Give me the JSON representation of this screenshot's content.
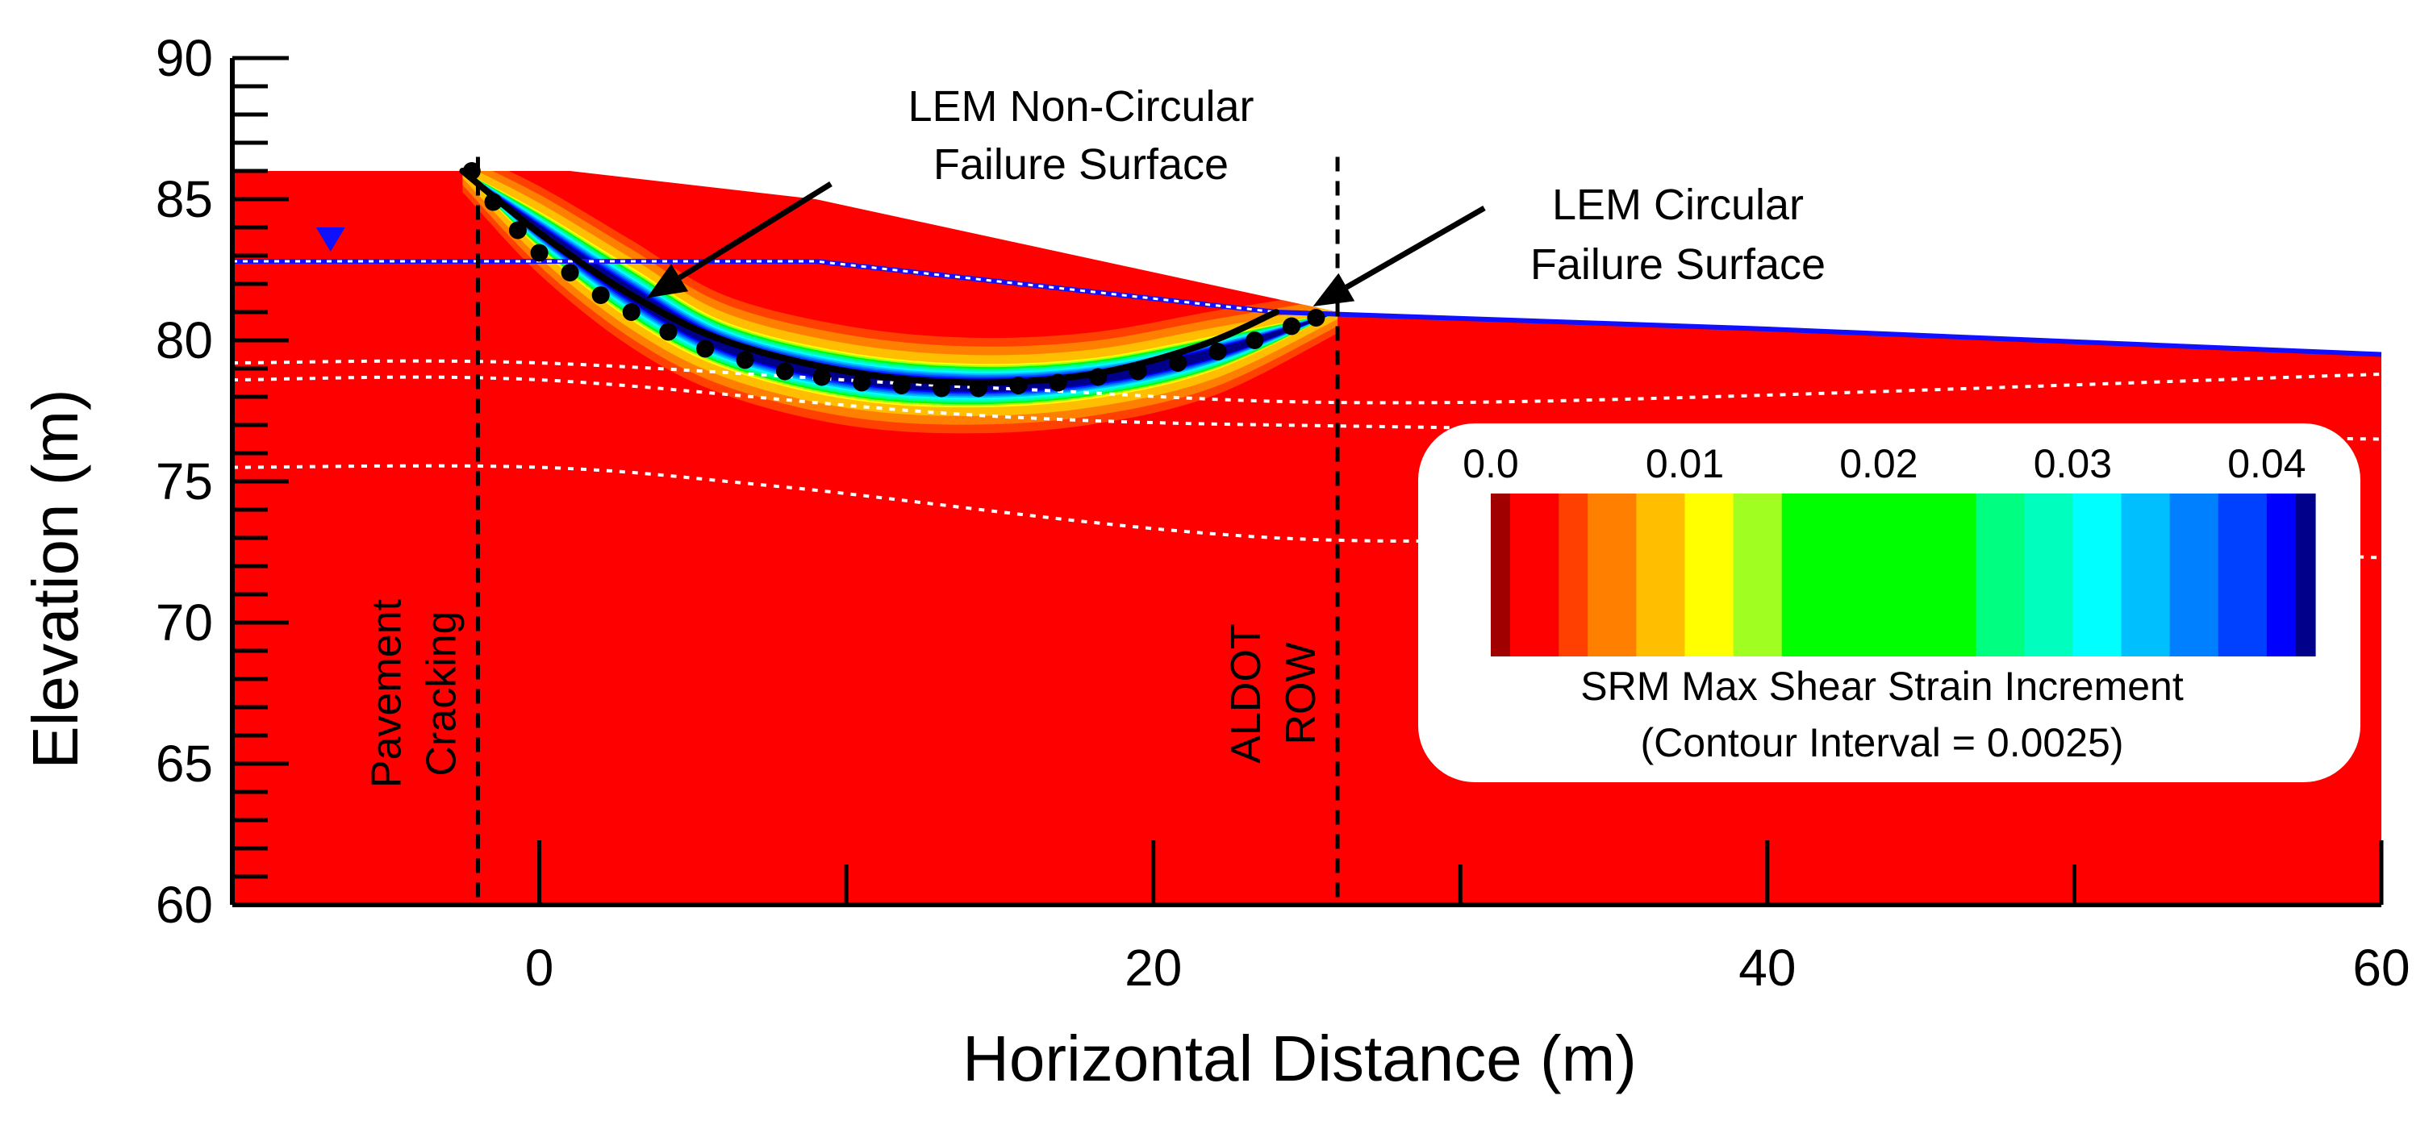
{
  "chart_data": {
    "type": "contour",
    "title": "",
    "xlabel": "Horizontal Distance (m)",
    "ylabel": "Elevation (m)",
    "xlim": [
      -10,
      60
    ],
    "ylim": [
      60,
      90
    ],
    "x_ticks": [
      0,
      20,
      40,
      60
    ],
    "y_ticks": [
      60,
      65,
      70,
      75,
      80,
      85,
      90
    ],
    "colors": {
      "background": "#ff0000",
      "water_table": "#1010ff",
      "layer_boundary": "#ffffff"
    },
    "ground_surface": {
      "x": [
        -10,
        1,
        9,
        26,
        60
      ],
      "y": [
        86,
        86,
        85,
        81,
        79.5
      ]
    },
    "water_table": {
      "x": [
        -10,
        9,
        24,
        40,
        60
      ],
      "y": [
        82.8,
        82.8,
        81,
        80.4,
        79.5
      ]
    },
    "layer_boundaries": [
      {
        "x": [
          -10,
          0,
          15,
          30,
          60
        ],
        "y": [
          79.2,
          79.2,
          78.3,
          77.8,
          78.8
        ]
      },
      {
        "x": [
          -10,
          0,
          15,
          30,
          60
        ],
        "y": [
          78.6,
          78.6,
          77.3,
          76.9,
          76.5
        ]
      },
      {
        "x": [
          -10,
          0,
          8,
          24,
          40,
          60
        ],
        "y": [
          75.5,
          75.5,
          74.8,
          73,
          73,
          72.3
        ]
      }
    ],
    "non_circular_surface": {
      "label_line1": "LEM Non-Circular",
      "label_line2": "Failure Surface",
      "x": [
        -2.5,
        0,
        3,
        6,
        10,
        14,
        18,
        21.5,
        24
      ],
      "y": [
        86,
        83.8,
        81.6,
        80,
        78.9,
        78.5,
        78.8,
        79.8,
        81
      ]
    },
    "circular_surface": {
      "label_line1": "LEM Circular",
      "label_line2": "Failure Surface",
      "x": [
        -2.2,
        -1.5,
        -0.7,
        0,
        1,
        2,
        3,
        4.2,
        5.4,
        6.7,
        8,
        9.2,
        10.5,
        11.8,
        13.1,
        14.3,
        15.6,
        16.9,
        18.2,
        19.5,
        20.8,
        22.1,
        23.3,
        24.5,
        25.3
      ],
      "y": [
        86,
        84.9,
        83.9,
        83.1,
        82.4,
        81.6,
        81,
        80.3,
        79.7,
        79.3,
        78.9,
        78.7,
        78.5,
        78.4,
        78.3,
        78.3,
        78.4,
        78.5,
        78.7,
        78.9,
        79.2,
        79.6,
        80,
        80.5,
        80.8
      ]
    },
    "strain_zone_band": {
      "x": [
        -2.5,
        0,
        3,
        6,
        10,
        14,
        18,
        22,
        26
      ],
      "y_upper": [
        86,
        84.5,
        82.5,
        80.6,
        79.5,
        79.1,
        79.3,
        80.1,
        81
      ],
      "y_lower": [
        86,
        83.3,
        80.8,
        79.1,
        78,
        77.7,
        78,
        79,
        81
      ]
    },
    "vertical_markers": [
      {
        "x": -2,
        "label_line1": "Pavement",
        "label_line2": "Cracking"
      },
      {
        "x": 26,
        "label_line1": "ALDOT",
        "label_line2": "ROW"
      }
    ],
    "colorbar": {
      "title_line1": "SRM Max Shear Strain Increment",
      "title_line2": "(Contour Interval = 0.0025)",
      "tick_labels": [
        "0.0",
        "0.01",
        "0.02",
        "0.03",
        "0.04"
      ],
      "tick_values": [
        0,
        0.01,
        0.02,
        0.03,
        0.04
      ],
      "min": 0,
      "max": 0.0425,
      "bins": [
        {
          "from": 0,
          "to": 0.001,
          "color": "#a00000"
        },
        {
          "from": 0.001,
          "to": 0.0035,
          "color": "#ff0000"
        },
        {
          "from": 0.0035,
          "to": 0.005,
          "color": "#ff4000"
        },
        {
          "from": 0.005,
          "to": 0.0075,
          "color": "#ff8000"
        },
        {
          "from": 0.0075,
          "to": 0.01,
          "color": "#ffbf00"
        },
        {
          "from": 0.01,
          "to": 0.0125,
          "color": "#ffff00"
        },
        {
          "from": 0.0125,
          "to": 0.015,
          "color": "#a0ff20"
        },
        {
          "from": 0.015,
          "to": 0.025,
          "color": "#00ff00"
        },
        {
          "from": 0.025,
          "to": 0.0275,
          "color": "#00ff80"
        },
        {
          "from": 0.0275,
          "to": 0.03,
          "color": "#00ffbf"
        },
        {
          "from": 0.03,
          "to": 0.0325,
          "color": "#00ffff"
        },
        {
          "from": 0.0325,
          "to": 0.035,
          "color": "#00bfff"
        },
        {
          "from": 0.035,
          "to": 0.0375,
          "color": "#0080ff"
        },
        {
          "from": 0.0375,
          "to": 0.04,
          "color": "#0040ff"
        },
        {
          "from": 0.04,
          "to": 0.0415,
          "color": "#0000ff"
        },
        {
          "from": 0.0415,
          "to": 0.0425,
          "color": "#00008b"
        }
      ]
    }
  }
}
